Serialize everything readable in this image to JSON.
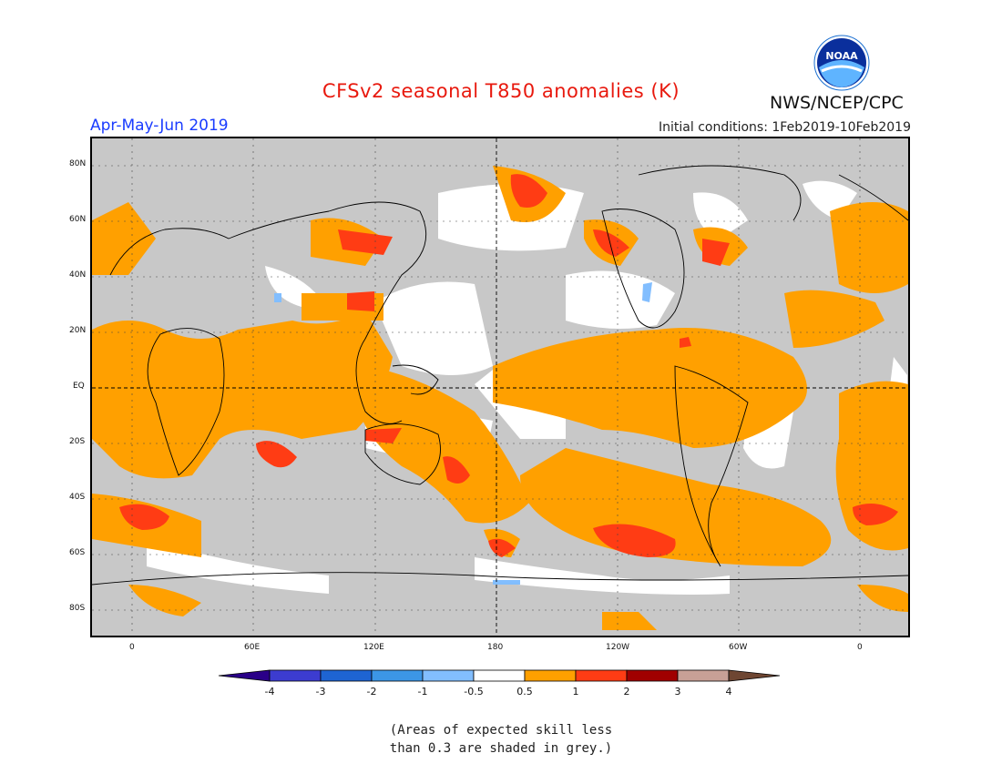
{
  "title": "CFSv2 seasonal T850 anomalies (K)",
  "period": "Apr-May-Jun 2019",
  "initial_conditions": "Initial conditions: 1Feb2019-10Feb2019",
  "agency": "NWS/NCEP/CPC",
  "logo_text": "NOAA",
  "lat_labels": [
    "80N",
    "60N",
    "40N",
    "20N",
    "EQ",
    "20S",
    "40S",
    "60S",
    "80S"
  ],
  "lon_labels": [
    "0",
    "60E",
    "120E",
    "180",
    "120W",
    "60W",
    "0"
  ],
  "colorbar": {
    "ticks": [
      "-4",
      "-3",
      "-2",
      "-1",
      "-0.5",
      "0.5",
      "1",
      "2",
      "3",
      "4"
    ],
    "colors": [
      "#2a0088",
      "#3c3cd0",
      "#1e64d2",
      "#3c96e6",
      "#82beff",
      "#ffffff",
      "#ffa000",
      "#ff3c14",
      "#a00000",
      "#c8a096",
      "#6e4632"
    ]
  },
  "note_line1": "(Areas of expected skill less",
  "note_line2": "than 0.3 are shaded in grey.)",
  "colors": {
    "skill_grey": "#c8c8c8",
    "neutral": "#ffffff",
    "warm1": "#ffa000",
    "warm2": "#ff3c14",
    "cool": "#82beff",
    "title_red": "#e8190e",
    "period_blue": "#1a3cff"
  }
}
